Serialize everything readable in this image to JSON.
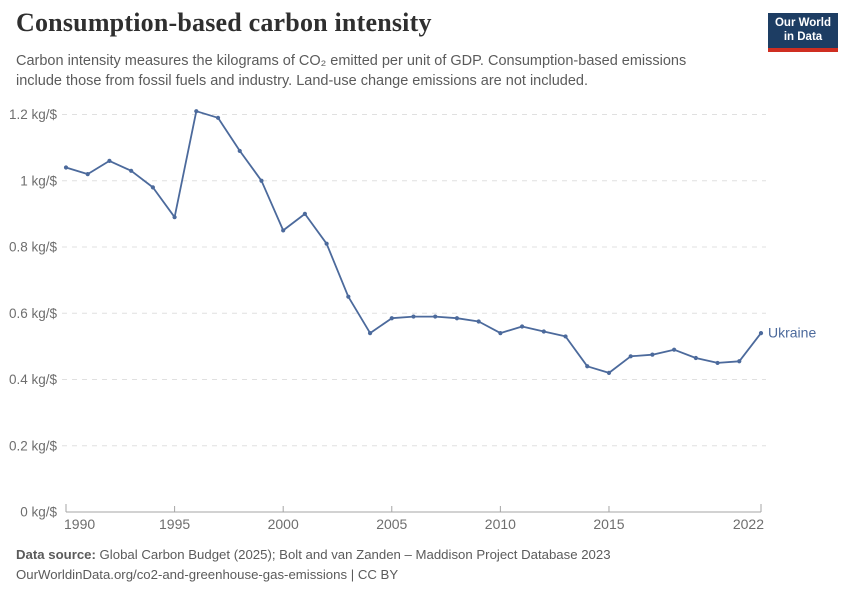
{
  "header": {
    "title": "Consumption-based carbon intensity",
    "subtitle": "Carbon intensity measures the kilograms of CO₂ emitted per unit of GDP. Consumption-based emissions include those from fossil fuels and industry. Land-use change emissions are not included.",
    "logo": {
      "line1": "Our World",
      "line2": "in Data",
      "bg_color": "#1d3d63",
      "bar_color": "#cf2e21"
    }
  },
  "chart_data": {
    "type": "line",
    "title": "Consumption-based carbon intensity",
    "xlim": [
      1990,
      2022
    ],
    "ylim": [
      0,
      1.2
    ],
    "grid": "horizontal-dashed",
    "x_ticks": [
      1990,
      1995,
      2000,
      2005,
      2010,
      2015,
      2022
    ],
    "y_ticks": [
      0,
      0.2,
      0.4,
      0.6,
      0.8,
      1,
      1.2
    ],
    "y_tick_labels": [
      "0 kg/$",
      "0.2 kg/$",
      "0.4 kg/$",
      "0.6 kg/$",
      "0.8 kg/$",
      "1 kg/$",
      "1.2 kg/$"
    ],
    "unit": "kg/$",
    "legend_position": "end-of-line",
    "series": [
      {
        "name": "Ukraine",
        "color": "#4C6A9C",
        "years": [
          1990,
          1991,
          1992,
          1993,
          1994,
          1995,
          1996,
          1997,
          1998,
          1999,
          2000,
          2001,
          2002,
          2003,
          2004,
          2005,
          2006,
          2007,
          2008,
          2009,
          2010,
          2011,
          2012,
          2013,
          2014,
          2015,
          2016,
          2017,
          2018,
          2019,
          2020,
          2021,
          2022
        ],
        "values": [
          1.04,
          1.02,
          1.06,
          1.03,
          0.98,
          0.89,
          1.21,
          1.19,
          1.09,
          1.0,
          0.85,
          0.9,
          0.81,
          0.65,
          0.54,
          0.585,
          0.59,
          0.59,
          0.585,
          0.575,
          0.54,
          0.56,
          0.545,
          0.53,
          0.44,
          0.42,
          0.47,
          0.475,
          0.49,
          0.465,
          0.45,
          0.455,
          0.54
        ]
      }
    ]
  },
  "footer": {
    "source_label": "Data source:",
    "source_text": " Global Carbon Budget (2025); Bolt and van Zanden – Maddison Project Database 2023",
    "link_text": "OurWorldinData.org/co2-and-greenhouse-gas-emissions | CC BY"
  },
  "colors": {
    "accent_line": "#4C6A9C",
    "grid": "#e0e0e0",
    "axis": "#a5a5a5",
    "tick_text": "#6e6e6e",
    "logo_bg": "#1d3d63",
    "logo_bar": "#cf2e21"
  }
}
